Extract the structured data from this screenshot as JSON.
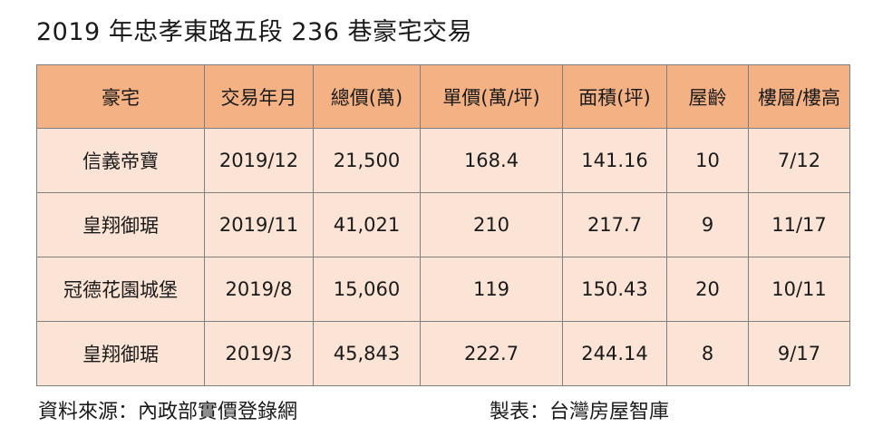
{
  "title": "2019 年忠孝東路五段 236 巷豪宅交易",
  "table": {
    "headers": [
      "豪宅",
      "交易年月",
      "總價(萬)",
      "單價(萬/坪)",
      "面積(坪)",
      "屋齡",
      "樓層/樓高"
    ],
    "rows": [
      [
        "信義帝寶",
        "2019/12",
        "21,500",
        "168.4",
        "141.16",
        "10",
        "7/12"
      ],
      [
        "皇翔御琚",
        "2019/11",
        "41,021",
        "210",
        "217.7",
        "9",
        "11/17"
      ],
      [
        "冠德花園城堡",
        "2019/8",
        "15,060",
        "119",
        "150.43",
        "20",
        "10/11"
      ],
      [
        "皇翔御琚",
        "2019/3",
        "45,843",
        "222.7",
        "244.14",
        "8",
        "9/17"
      ]
    ]
  },
  "footer": {
    "source": "資料來源：內政部實價登錄網",
    "credit": "製表：台灣房屋智庫"
  },
  "colors": {
    "header_bg": "#f4b183",
    "row_bg": "#fbe4d5",
    "border": "#7f7f7f"
  }
}
